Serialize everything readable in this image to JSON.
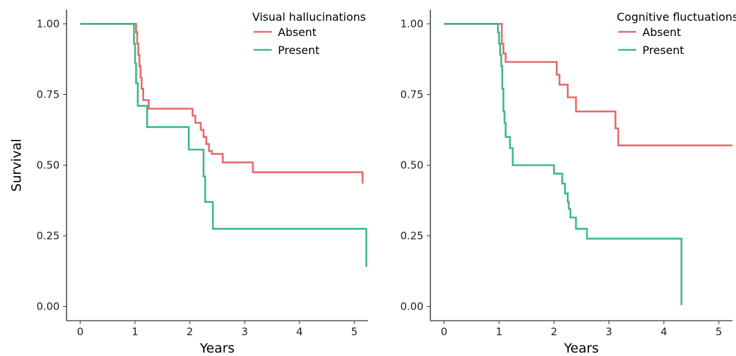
{
  "chart_data": [
    {
      "type": "line",
      "step": true,
      "title": "",
      "xlabel": "Years",
      "ylabel": "Survival",
      "xlim": [
        -0.25,
        5.25
      ],
      "ylim": [
        -0.05,
        1.05
      ],
      "x_ticks": [
        "0",
        "1",
        "2",
        "3",
        "4",
        "5"
      ],
      "y_ticks": [
        "0.00",
        "0.25",
        "0.50",
        "0.75",
        "1.00"
      ],
      "grid": false,
      "legend": {
        "title": "Visual hallucinations",
        "placement": "top-right"
      },
      "series": [
        {
          "name": "Absent",
          "color": "#E8686A",
          "x": [
            0,
            1.02,
            1.04,
            1.06,
            1.08,
            1.1,
            1.12,
            1.15,
            1.22,
            1.25,
            2.0,
            2.05,
            2.1,
            2.2,
            2.25,
            2.3,
            2.35,
            2.4,
            2.6,
            3.1,
            3.15,
            5.15
          ],
          "y": [
            1.0,
            0.97,
            0.93,
            0.89,
            0.85,
            0.81,
            0.77,
            0.73,
            0.73,
            0.7,
            0.7,
            0.675,
            0.65,
            0.625,
            0.6,
            0.575,
            0.55,
            0.54,
            0.51,
            0.51,
            0.475,
            0.435
          ]
        },
        {
          "name": "Present",
          "color": "#3DB88B",
          "x": [
            0,
            0.98,
            1.0,
            1.02,
            1.05,
            1.22,
            1.98,
            2.25,
            2.28,
            2.42,
            4.32,
            5.22
          ],
          "y": [
            1.0,
            0.93,
            0.86,
            0.79,
            0.71,
            0.635,
            0.555,
            0.46,
            0.37,
            0.275,
            0.275,
            0.14
          ]
        }
      ]
    },
    {
      "type": "line",
      "step": true,
      "title": "",
      "xlabel": "Years",
      "ylabel": "",
      "xlim": [
        -0.25,
        5.25
      ],
      "ylim": [
        -0.05,
        1.05
      ],
      "x_ticks": [
        "0",
        "1",
        "2",
        "3",
        "4",
        "5"
      ],
      "y_ticks": [
        "0.00",
        "0.25",
        "0.50",
        "0.75",
        "1.00"
      ],
      "grid": false,
      "legend": {
        "title": "Cognitive fluctuations",
        "placement": "top-right"
      },
      "series": [
        {
          "name": "Absent",
          "color": "#E8686A",
          "x": [
            0,
            1.05,
            1.08,
            1.12,
            2.05,
            2.1,
            2.25,
            2.4,
            3.12,
            3.17,
            5.25
          ],
          "y": [
            1.0,
            0.93,
            0.895,
            0.865,
            0.82,
            0.785,
            0.74,
            0.69,
            0.63,
            0.57,
            0.57
          ]
        },
        {
          "name": "Present",
          "color": "#3DB88B",
          "x": [
            0,
            0.98,
            1.0,
            1.02,
            1.04,
            1.06,
            1.08,
            1.1,
            1.12,
            1.2,
            1.25,
            2.0,
            2.15,
            2.2,
            2.25,
            2.27,
            2.3,
            2.4,
            2.6,
            4.32,
            4.32
          ],
          "y": [
            1.0,
            0.97,
            0.93,
            0.89,
            0.85,
            0.77,
            0.69,
            0.65,
            0.6,
            0.56,
            0.5,
            0.47,
            0.435,
            0.4,
            0.37,
            0.345,
            0.315,
            0.275,
            0.24,
            0.24,
            0.005
          ]
        }
      ]
    }
  ]
}
